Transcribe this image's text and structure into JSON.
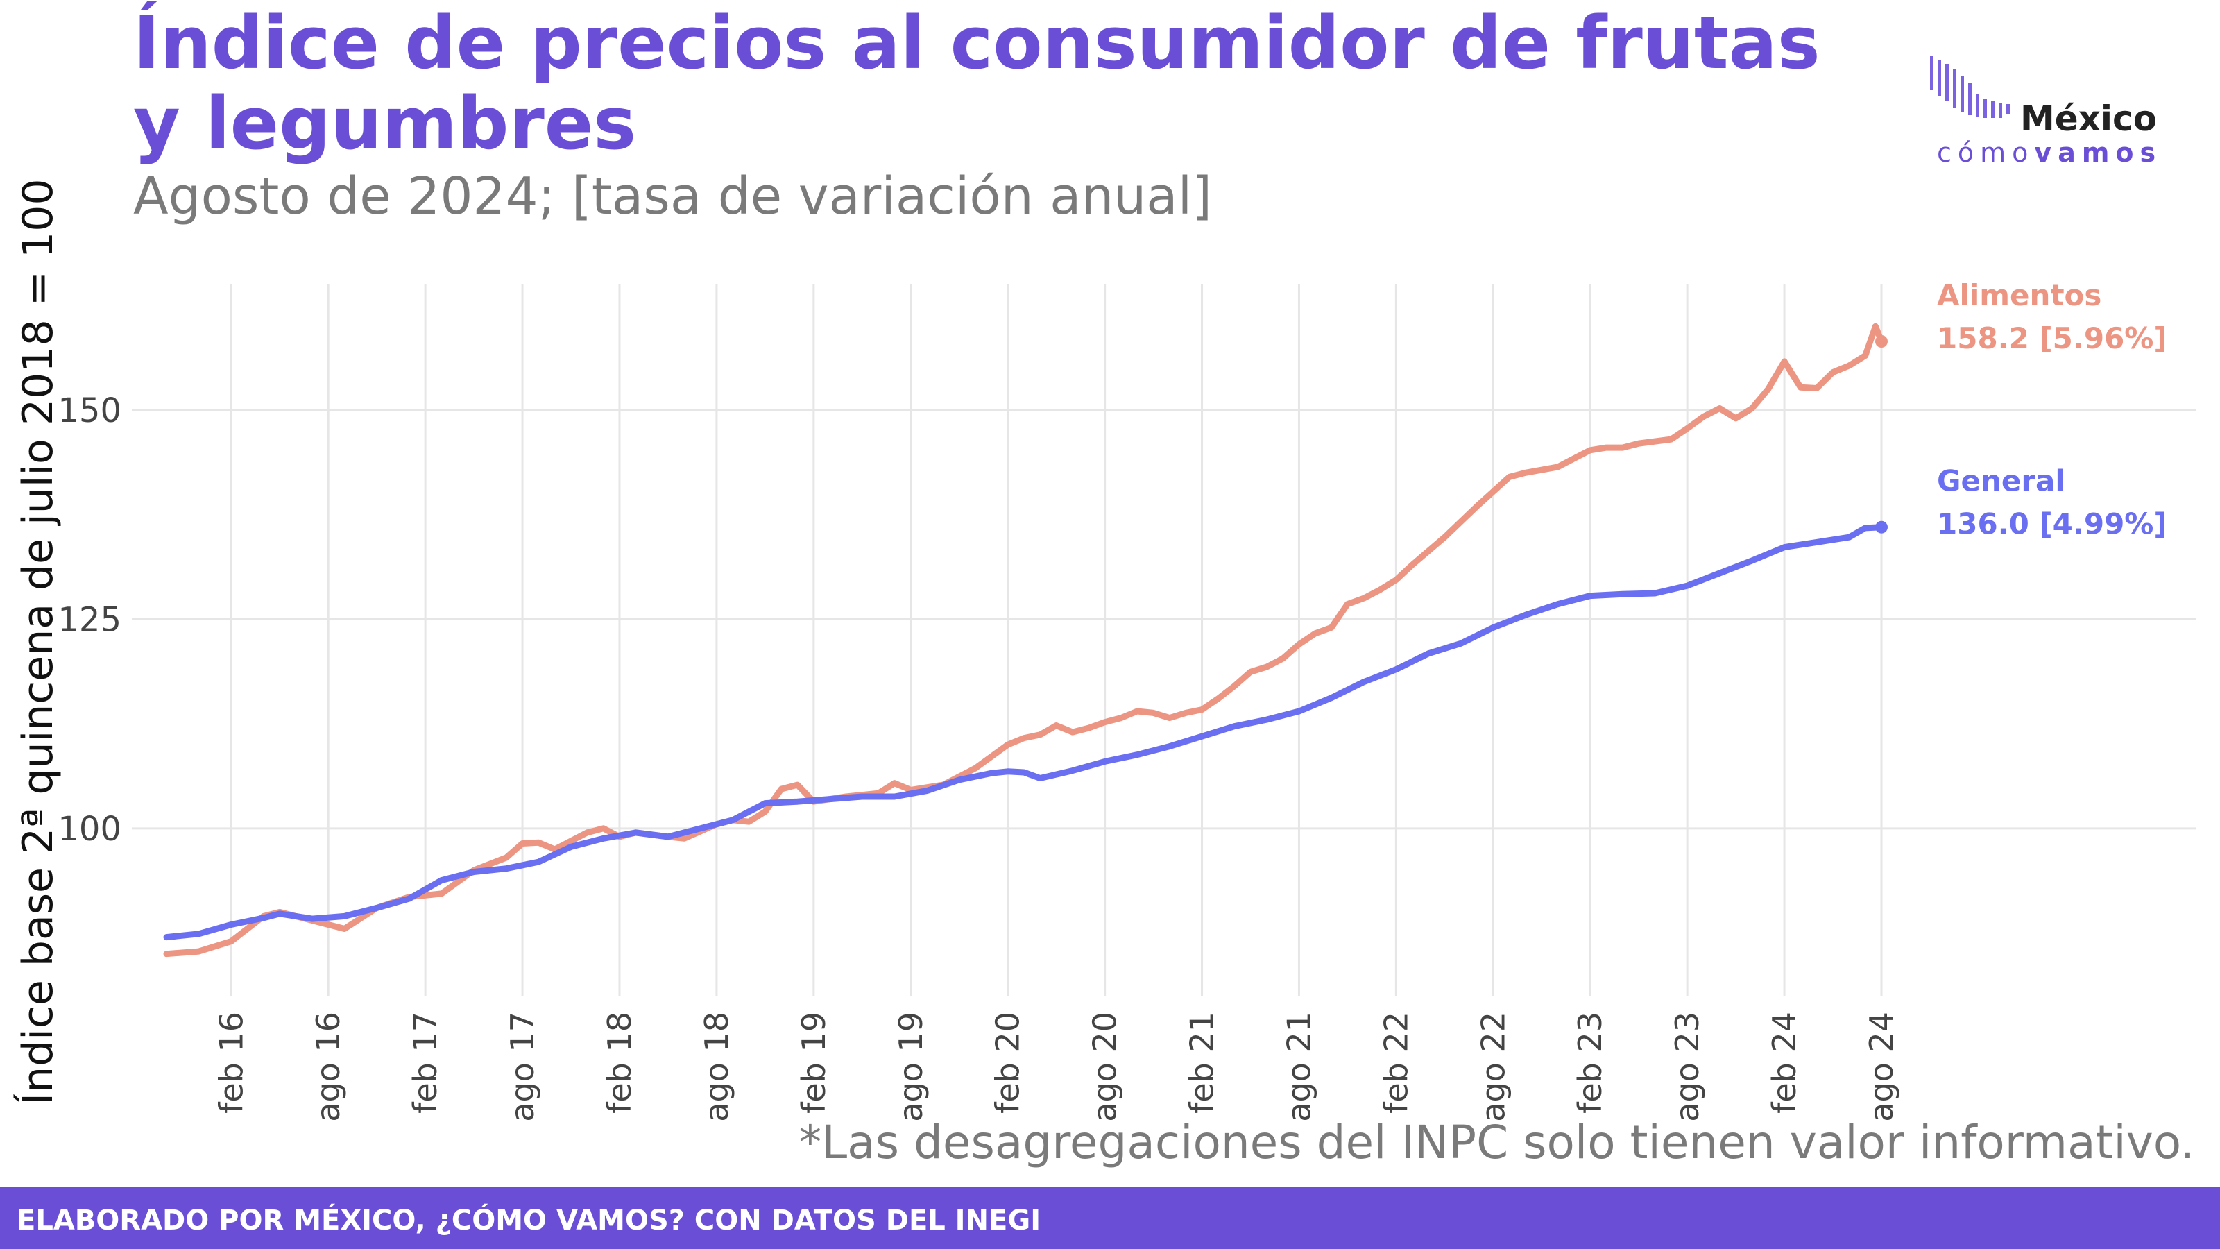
{
  "title": "Índice de precios al consumidor de frutas y legumbres",
  "subtitle": "Agosto de 2024; [tasa de variación anual]",
  "logo": {
    "top": "México",
    "bottom_light": "cómo",
    "bottom_bold": "vamos"
  },
  "note": "*Las desagregaciones del INPC solo tienen valor informativo.",
  "footer": "ELABORADO POR MÉXICO, ¿CÓMO VAMOS? CON DATOS DEL INEGI",
  "colors": {
    "accent": "#6a4fd6",
    "alimentos": "#ec9582",
    "general": "#6a6ef0",
    "grid": "#e6e6e6"
  },
  "chart_data": {
    "type": "line",
    "ylabel": "Índice base 2ª quincena de julio 2018 = 100",
    "ylim": [
      80,
      165
    ],
    "yticks": [
      100,
      125,
      150
    ],
    "grid": true,
    "x_start": "2015-10",
    "x_end": "2024-08",
    "xticks": [
      {
        "date": "2016-02",
        "label": "feb 16"
      },
      {
        "date": "2016-08",
        "label": "ago 16"
      },
      {
        "date": "2017-02",
        "label": "feb 17"
      },
      {
        "date": "2017-08",
        "label": "ago 17"
      },
      {
        "date": "2018-02",
        "label": "feb 18"
      },
      {
        "date": "2018-08",
        "label": "ago 18"
      },
      {
        "date": "2019-02",
        "label": "feb 19"
      },
      {
        "date": "2019-08",
        "label": "ago 19"
      },
      {
        "date": "2020-02",
        "label": "feb 20"
      },
      {
        "date": "2020-08",
        "label": "ago 20"
      },
      {
        "date": "2021-02",
        "label": "feb 21"
      },
      {
        "date": "2021-08",
        "label": "ago 21"
      },
      {
        "date": "2022-02",
        "label": "feb 22"
      },
      {
        "date": "2022-08",
        "label": "ago 22"
      },
      {
        "date": "2023-02",
        "label": "feb 23"
      },
      {
        "date": "2023-08",
        "label": "ago 23"
      },
      {
        "date": "2024-02",
        "label": "feb 24"
      },
      {
        "date": "2024-08",
        "label": "ago 24"
      }
    ],
    "series": [
      {
        "name": "Alimentos",
        "label_value": "158.2 [5.96%]",
        "color": "#ec9582",
        "points": [
          [
            "2015-10",
            85.0
          ],
          [
            "2015-12",
            85.3
          ],
          [
            "2016-02",
            86.5
          ],
          [
            "2016-04",
            89.5
          ],
          [
            "2016-05",
            90.0
          ],
          [
            "2016-07",
            89.0
          ],
          [
            "2016-09",
            88.0
          ],
          [
            "2016-11",
            90.5
          ],
          [
            "2017-01",
            91.8
          ],
          [
            "2017-03",
            92.2
          ],
          [
            "2017-05",
            95.0
          ],
          [
            "2017-07",
            96.5
          ],
          [
            "2017-08",
            98.2
          ],
          [
            "2017-09",
            98.3
          ],
          [
            "2017-10",
            97.5
          ],
          [
            "2017-12",
            99.5
          ],
          [
            "2018-01",
            100.0
          ],
          [
            "2018-02",
            99.0
          ],
          [
            "2018-03",
            99.5
          ],
          [
            "2018-05",
            99.0
          ],
          [
            "2018-06",
            98.8
          ],
          [
            "2018-08",
            100.5
          ],
          [
            "2018-09",
            101.0
          ],
          [
            "2018-10",
            100.8
          ],
          [
            "2018-11",
            102.0
          ],
          [
            "2018-12",
            104.7
          ],
          [
            "2019-01",
            105.2
          ],
          [
            "2019-02",
            103.2
          ],
          [
            "2019-04",
            103.8
          ],
          [
            "2019-06",
            104.2
          ],
          [
            "2019-07",
            105.4
          ],
          [
            "2019-08",
            104.6
          ],
          [
            "2019-10",
            105.2
          ],
          [
            "2019-12",
            107.2
          ],
          [
            "2020-02",
            110.0
          ],
          [
            "2020-03",
            110.8
          ],
          [
            "2020-04",
            111.2
          ],
          [
            "2020-05",
            112.3
          ],
          [
            "2020-06",
            111.5
          ],
          [
            "2020-07",
            112.0
          ],
          [
            "2020-08",
            112.7
          ],
          [
            "2020-09",
            113.2
          ],
          [
            "2020-10",
            114.0
          ],
          [
            "2020-11",
            113.8
          ],
          [
            "2020-12",
            113.2
          ],
          [
            "2021-01",
            113.8
          ],
          [
            "2021-02",
            114.2
          ],
          [
            "2021-03",
            115.5
          ],
          [
            "2021-04",
            117.0
          ],
          [
            "2021-05",
            118.7
          ],
          [
            "2021-06",
            119.3
          ],
          [
            "2021-07",
            120.3
          ],
          [
            "2021-08",
            122.0
          ],
          [
            "2021-09",
            123.3
          ],
          [
            "2021-10",
            124.0
          ],
          [
            "2021-11",
            126.8
          ],
          [
            "2021-12",
            127.5
          ],
          [
            "2022-01",
            128.5
          ],
          [
            "2022-02",
            129.7
          ],
          [
            "2022-03",
            131.5
          ],
          [
            "2022-05",
            134.8
          ],
          [
            "2022-07",
            138.5
          ],
          [
            "2022-09",
            142.0
          ],
          [
            "2022-10",
            142.5
          ],
          [
            "2022-12",
            143.2
          ],
          [
            "2023-01",
            144.2
          ],
          [
            "2023-02",
            145.2
          ],
          [
            "2023-03",
            145.5
          ],
          [
            "2023-04",
            145.5
          ],
          [
            "2023-05",
            146.0
          ],
          [
            "2023-07",
            146.5
          ],
          [
            "2023-08",
            147.8
          ],
          [
            "2023-09",
            149.2
          ],
          [
            "2023-10",
            150.2
          ],
          [
            "2023-11",
            149.0
          ],
          [
            "2023-12",
            150.2
          ],
          [
            "2024-01",
            152.5
          ],
          [
            "2024-02",
            155.8
          ],
          [
            "2024-03",
            152.7
          ],
          [
            "2024-04",
            152.6
          ],
          [
            "2024-05",
            154.5
          ],
          [
            "2024-06",
            155.3
          ],
          [
            "2024-07",
            156.5
          ],
          [
            "2024-07-20",
            160.0
          ],
          [
            "2024-08",
            158.2
          ]
        ]
      },
      {
        "name": "General",
        "label_value": "136.0 [4.99%]",
        "color": "#6a6ef0",
        "points": [
          [
            "2015-10",
            87.0
          ],
          [
            "2015-12",
            87.4
          ],
          [
            "2016-02",
            88.5
          ],
          [
            "2016-04",
            89.3
          ],
          [
            "2016-05",
            89.8
          ],
          [
            "2016-07",
            89.2
          ],
          [
            "2016-09",
            89.5
          ],
          [
            "2016-11",
            90.5
          ],
          [
            "2017-01",
            91.6
          ],
          [
            "2017-03",
            93.8
          ],
          [
            "2017-05",
            94.8
          ],
          [
            "2017-07",
            95.2
          ],
          [
            "2017-09",
            96.0
          ],
          [
            "2017-11",
            97.8
          ],
          [
            "2018-01",
            98.8
          ],
          [
            "2018-03",
            99.5
          ],
          [
            "2018-05",
            99.0
          ],
          [
            "2018-07",
            100.0
          ],
          [
            "2018-09",
            101.0
          ],
          [
            "2018-11",
            103.0
          ],
          [
            "2019-01",
            103.2
          ],
          [
            "2019-03",
            103.5
          ],
          [
            "2019-05",
            103.8
          ],
          [
            "2019-07",
            103.8
          ],
          [
            "2019-09",
            104.5
          ],
          [
            "2019-11",
            105.8
          ],
          [
            "2020-01",
            106.6
          ],
          [
            "2020-02",
            106.8
          ],
          [
            "2020-03",
            106.7
          ],
          [
            "2020-04",
            106.0
          ],
          [
            "2020-06",
            106.9
          ],
          [
            "2020-08",
            108.0
          ],
          [
            "2020-10",
            108.8
          ],
          [
            "2020-12",
            109.8
          ],
          [
            "2021-02",
            111.0
          ],
          [
            "2021-04",
            112.2
          ],
          [
            "2021-06",
            113.0
          ],
          [
            "2021-08",
            114.0
          ],
          [
            "2021-10",
            115.6
          ],
          [
            "2021-12",
            117.5
          ],
          [
            "2022-02",
            119.0
          ],
          [
            "2022-04",
            120.9
          ],
          [
            "2022-06",
            122.1
          ],
          [
            "2022-08",
            124.0
          ],
          [
            "2022-10",
            125.5
          ],
          [
            "2022-12",
            126.8
          ],
          [
            "2023-02",
            127.8
          ],
          [
            "2023-04",
            128.0
          ],
          [
            "2023-06",
            128.1
          ],
          [
            "2023-08",
            129.0
          ],
          [
            "2023-10",
            130.5
          ],
          [
            "2023-12",
            132.0
          ],
          [
            "2024-02",
            133.6
          ],
          [
            "2024-04",
            134.2
          ],
          [
            "2024-05",
            134.5
          ],
          [
            "2024-06",
            134.8
          ],
          [
            "2024-07",
            135.9
          ],
          [
            "2024-08",
            136.0
          ]
        ]
      }
    ]
  }
}
